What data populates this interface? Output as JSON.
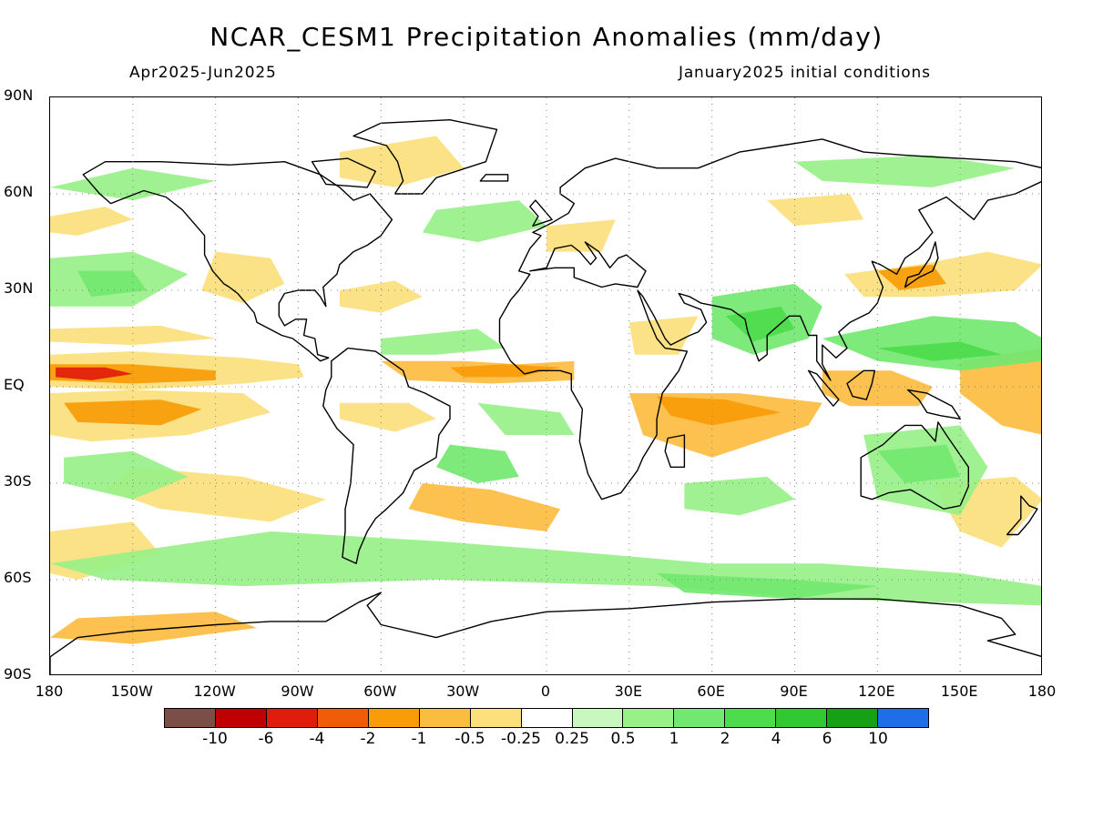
{
  "title": "NCAR_CESM1 Precipitation Anomalies (mm/day)",
  "period": "Apr2025-Jun2025",
  "init_conditions": "January2025 initial conditions",
  "map": {
    "projection": "cylindrical equidistant",
    "lon_range": [
      -180,
      180
    ],
    "lat_range": [
      -90,
      90
    ],
    "grid": true,
    "lat_labels": [
      "90N",
      "60N",
      "30N",
      "EQ",
      "30S",
      "60S",
      "90S"
    ],
    "lon_labels": [
      "180",
      "150W",
      "120W",
      "90W",
      "60W",
      "30W",
      "0",
      "30E",
      "60E",
      "90E",
      "120E",
      "150E",
      "180"
    ]
  },
  "colorbar": {
    "colors": [
      "#7b4f48",
      "#c00000",
      "#e01c0c",
      "#f05c08",
      "#f89c08",
      "#fcbc40",
      "#fce07c",
      "#ffffff",
      "#c8f8c0",
      "#98f088",
      "#72e870",
      "#4cdc4c",
      "#32c832",
      "#16a016",
      "#1e6ee8"
    ],
    "labels": [
      "-10",
      "-6",
      "-4",
      "-2",
      "-1",
      "-0.5",
      "-0.25",
      "0.25",
      "0.5",
      "1",
      "2",
      "4",
      "6",
      "10"
    ]
  }
}
